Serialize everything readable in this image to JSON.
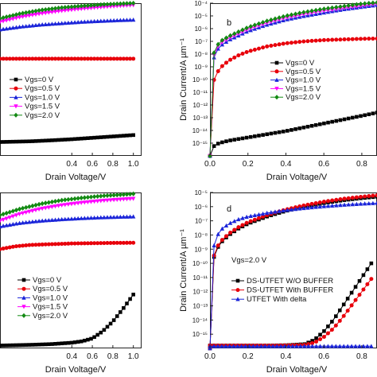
{
  "chart_data": [
    {
      "id": "a",
      "panel_label": "",
      "type": "line",
      "xlabel": "Drain Voltage/V",
      "ylabel": "",
      "xlim": [
        -0.3,
        1.08
      ],
      "ylim": [
        -1,
        10
      ],
      "x_ticks": [
        0.4,
        0.6,
        0.8,
        1.0
      ],
      "x_tick_labels": [
        "0.4",
        "0.6",
        "0.8",
        "1.0"
      ],
      "legend": {
        "position": "center-left"
      },
      "series": [
        {
          "name": "Vgs=0    V",
          "color": "#000000",
          "marker": "square",
          "x": [
            -0.3,
            0.0,
            0.2,
            0.4,
            0.6,
            0.8,
            1.0
          ],
          "y": [
            0.0,
            0.05,
            0.12,
            0.2,
            0.3,
            0.4,
            0.5
          ]
        },
        {
          "name": "Vgs=0.5 V",
          "color": "#e8000b",
          "marker": "circle",
          "x": [
            -0.3,
            0.0,
            0.2,
            0.4,
            0.6,
            0.8,
            1.0
          ],
          "y": [
            6.0,
            6.0,
            6.0,
            6.0,
            6.0,
            6.0,
            6.0
          ]
        },
        {
          "name": "Vgs=1.0 V",
          "color": "#1a24d9",
          "marker": "triangle",
          "x": [
            -0.3,
            -0.1,
            0.1,
            0.3,
            0.5,
            0.7,
            0.9,
            1.0
          ],
          "y": [
            8.1,
            8.3,
            8.45,
            8.55,
            8.65,
            8.72,
            8.78,
            8.8
          ]
        },
        {
          "name": "Vgs=1.5 V",
          "color": "#ff00ff",
          "marker": "triangle-down",
          "x": [
            -0.3,
            -0.1,
            0.1,
            0.3,
            0.5,
            0.7,
            0.9,
            1.0
          ],
          "y": [
            8.65,
            9.0,
            9.25,
            9.45,
            9.6,
            9.72,
            9.82,
            9.86
          ]
        },
        {
          "name": "Vgs=2.0 V",
          "color": "#138a13",
          "marker": "diamond",
          "x": [
            -0.3,
            -0.1,
            0.1,
            0.3,
            0.5,
            0.7,
            0.9,
            1.0
          ],
          "y": [
            8.9,
            9.25,
            9.5,
            9.68,
            9.8,
            9.9,
            9.97,
            10.0
          ]
        }
      ]
    },
    {
      "id": "b",
      "panel_label": "b",
      "type": "line",
      "xlabel": "Drain Voltage/V",
      "ylabel": "Drain Current/A µm⁻¹",
      "xlim": [
        0,
        0.88
      ],
      "ylim": [
        -16,
        -4
      ],
      "y_scale": "log",
      "x_ticks": [
        0.0,
        0.2,
        0.4,
        0.6,
        0.8
      ],
      "x_tick_labels": [
        "0.0",
        "0.2",
        "0.4",
        "0.6",
        "0.8"
      ],
      "y_ticks": [
        -15,
        -14,
        -13,
        -12,
        -11,
        -10,
        -9,
        -8,
        -7,
        -6,
        -5,
        -4
      ],
      "y_tick_labels": [
        "10⁻¹⁵",
        "10⁻¹⁴",
        "10⁻¹³",
        "10⁻¹²",
        "10⁻¹¹",
        "10⁻¹⁰",
        "10⁻⁹",
        "10⁻⁸",
        "10⁻⁷",
        "10⁻⁶",
        "10⁻⁵",
        "10⁻⁴"
      ],
      "legend": {
        "position": "center-right"
      },
      "series": [
        {
          "name": "Vgs=0   V",
          "color": "#000000",
          "marker": "square",
          "x": [
            0.0,
            0.01,
            0.03,
            0.06,
            0.1,
            0.2,
            0.3,
            0.4,
            0.5,
            0.6,
            0.7,
            0.8,
            0.88
          ],
          "y": [
            -16.0,
            -15.4,
            -15.1,
            -14.95,
            -14.8,
            -14.55,
            -14.3,
            -14.05,
            -13.75,
            -13.45,
            -13.15,
            -12.85,
            -12.6
          ]
        },
        {
          "name": "Vgs=0.5 V",
          "color": "#e8000b",
          "marker": "circle",
          "x": [
            0.0,
            0.005,
            0.01,
            0.03,
            0.06,
            0.1,
            0.15,
            0.2,
            0.3,
            0.4,
            0.5,
            0.6,
            0.7,
            0.8,
            0.88
          ],
          "y": [
            -16.0,
            -11.5,
            -10.6,
            -9.6,
            -9.0,
            -8.5,
            -8.1,
            -7.8,
            -7.4,
            -7.15,
            -7.0,
            -6.9,
            -6.85,
            -6.8,
            -6.78
          ]
        },
        {
          "name": "Vgs=1.0 V",
          "color": "#1a24d9",
          "marker": "triangle",
          "x": [
            0.0,
            0.005,
            0.01,
            0.03,
            0.06,
            0.1,
            0.2,
            0.3,
            0.4,
            0.5,
            0.6,
            0.7,
            0.8,
            0.88
          ],
          "y": [
            -16.0,
            -10.5,
            -8.9,
            -7.8,
            -7.3,
            -6.9,
            -6.2,
            -5.7,
            -5.3,
            -5.0,
            -4.75,
            -4.5,
            -4.3,
            -4.15
          ]
        },
        {
          "name": "Vgs=1.5 V",
          "color": "#ff00ff",
          "marker": "triangle-down",
          "x": [
            0.0,
            0.005,
            0.01,
            0.03,
            0.06,
            0.1,
            0.2,
            0.3,
            0.4,
            0.5,
            0.6,
            0.7,
            0.8,
            0.88
          ],
          "y": [
            -16.0,
            -10.3,
            -8.7,
            -7.6,
            -7.1,
            -6.75,
            -6.05,
            -5.55,
            -5.15,
            -4.85,
            -4.6,
            -4.4,
            -4.2,
            -4.05
          ]
        },
        {
          "name": "Vgs=2.0 V",
          "color": "#138a13",
          "marker": "diamond",
          "x": [
            0.0,
            0.005,
            0.01,
            0.03,
            0.06,
            0.1,
            0.2,
            0.3,
            0.4,
            0.5,
            0.6,
            0.7,
            0.8,
            0.88
          ],
          "y": [
            -16.0,
            -10.1,
            -8.5,
            -7.45,
            -6.95,
            -6.6,
            -5.9,
            -5.4,
            -5.0,
            -4.7,
            -4.45,
            -4.25,
            -4.05,
            -3.95
          ]
        }
      ]
    },
    {
      "id": "c",
      "panel_label": "",
      "type": "line",
      "xlabel": "Drain Voltage/V",
      "ylabel": "",
      "xlim": [
        -0.3,
        1.08
      ],
      "ylim": [
        -1,
        10
      ],
      "x_ticks": [
        0.4,
        0.6,
        0.8,
        1.0
      ],
      "x_tick_labels": [
        "0.4",
        "0.6",
        "0.8",
        "1.0"
      ],
      "legend": {
        "position": "lower-center"
      },
      "series": [
        {
          "name": "Vgs=0    V",
          "color": "#000000",
          "marker": "square",
          "x": [
            -0.3,
            0.0,
            0.2,
            0.4,
            0.5,
            0.6,
            0.7,
            0.8,
            0.9,
            1.0
          ],
          "y": [
            -0.8,
            -0.75,
            -0.7,
            -0.6,
            -0.5,
            -0.3,
            0.2,
            0.9,
            1.8,
            2.8
          ]
        },
        {
          "name": "Vgs=0.5 V",
          "color": "#e8000b",
          "marker": "circle",
          "x": [
            -0.3,
            -0.15,
            0.0,
            0.2,
            0.4,
            0.6,
            0.8,
            1.0
          ],
          "y": [
            6.0,
            6.2,
            6.3,
            6.35,
            6.4,
            6.42,
            6.44,
            6.45
          ]
        },
        {
          "name": "Vgs=1.0 V",
          "color": "#1a24d9",
          "marker": "triangle",
          "x": [
            -0.3,
            -0.1,
            0.1,
            0.3,
            0.5,
            0.7,
            0.9,
            1.0
          ],
          "y": [
            7.6,
            7.85,
            8.0,
            8.1,
            8.18,
            8.24,
            8.28,
            8.3
          ]
        },
        {
          "name": "Vgs=1.5 V",
          "color": "#ff00ff",
          "marker": "triangle-down",
          "x": [
            -0.3,
            -0.1,
            0.1,
            0.3,
            0.5,
            0.7,
            0.9,
            1.0
          ],
          "y": [
            8.0,
            8.5,
            8.85,
            9.1,
            9.28,
            9.42,
            9.52,
            9.56
          ]
        },
        {
          "name": "Vgs=2.0 V",
          "color": "#138a13",
          "marker": "diamond",
          "x": [
            -0.3,
            -0.1,
            0.1,
            0.3,
            0.5,
            0.7,
            0.9,
            1.0
          ],
          "y": [
            8.4,
            8.85,
            9.2,
            9.45,
            9.62,
            9.76,
            9.85,
            9.9
          ]
        }
      ]
    },
    {
      "id": "d",
      "panel_label": "d",
      "type": "line",
      "xlabel": "Drain Voltage/V",
      "ylabel": "Drain Current/A µm⁻¹",
      "xlim": [
        0,
        0.88
      ],
      "ylim": [
        -16,
        -5
      ],
      "y_scale": "log",
      "x_ticks": [
        0.0,
        0.2,
        0.4,
        0.6,
        0.8
      ],
      "x_tick_labels": [
        "0.0",
        "0.2",
        "0.4",
        "0.6",
        "0.8"
      ],
      "y_ticks": [
        -15,
        -14,
        -13,
        -12,
        -11,
        -10,
        -9,
        -8,
        -7,
        -6,
        -5
      ],
      "y_tick_labels": [
        "10⁻¹⁵",
        "10⁻¹⁴",
        "10⁻¹³",
        "10⁻¹²",
        "10⁻¹¹",
        "10⁻¹⁰",
        "10⁻⁹",
        "10⁻⁸",
        "10⁻⁷",
        "10⁻⁶",
        "10⁻⁵"
      ],
      "annotation": "Vgs=2.0 V",
      "legend": {
        "position": "center-left"
      },
      "series": [
        {
          "name": "DS-UTFET  W/O  BUFFER",
          "color": "#000000",
          "marker": "square",
          "x": [
            0.0,
            0.005,
            0.01,
            0.02,
            0.04,
            0.06,
            0.1,
            0.15,
            0.2,
            0.3,
            0.4,
            0.5,
            0.6,
            0.7,
            0.8,
            0.88
          ],
          "y": [
            -16.0,
            -13.0,
            -11.0,
            -9.6,
            -8.9,
            -8.5,
            -8.0,
            -7.55,
            -7.2,
            -6.7,
            -6.3,
            -6.0,
            -5.75,
            -5.55,
            -5.4,
            -5.3
          ]
        },
        {
          "name": "DS-UTFET  With  BUFFER",
          "color": "#e8000b",
          "marker": "circle",
          "x": [
            0.0,
            0.005,
            0.01,
            0.02,
            0.04,
            0.06,
            0.1,
            0.15,
            0.2,
            0.3,
            0.4,
            0.5,
            0.6,
            0.7,
            0.8,
            0.88
          ],
          "y": [
            -16.0,
            -12.8,
            -10.8,
            -9.5,
            -8.8,
            -8.4,
            -7.9,
            -7.45,
            -7.1,
            -6.6,
            -6.2,
            -5.9,
            -5.65,
            -5.45,
            -5.3,
            -5.2
          ]
        },
        {
          "name": "UTFET        With  delta",
          "color": "#1a24d9",
          "marker": "triangle",
          "x": [
            0.0,
            0.005,
            0.01,
            0.02,
            0.04,
            0.06,
            0.1,
            0.15,
            0.2,
            0.3,
            0.4,
            0.5,
            0.6,
            0.7,
            0.8,
            0.88
          ],
          "y": [
            -16.0,
            -12.2,
            -10.0,
            -8.8,
            -8.0,
            -7.6,
            -7.2,
            -6.9,
            -6.7,
            -6.45,
            -6.25,
            -6.1,
            -5.98,
            -5.88,
            -5.8,
            -5.75
          ]
        },
        {
          "name": "",
          "color": "#000000",
          "marker": "square",
          "x": [
            0.0,
            0.1,
            0.2,
            0.3,
            0.4,
            0.5,
            0.55,
            0.6,
            0.65,
            0.7,
            0.75,
            0.8,
            0.85
          ],
          "y": [
            -15.8,
            -15.8,
            -15.8,
            -15.8,
            -15.78,
            -15.7,
            -15.4,
            -14.8,
            -14.0,
            -13.0,
            -12.0,
            -11.0,
            -10.0
          ]
        },
        {
          "name": "",
          "color": "#e8000b",
          "marker": "circle",
          "x": [
            0.0,
            0.1,
            0.2,
            0.3,
            0.4,
            0.5,
            0.55,
            0.6,
            0.65,
            0.7,
            0.75,
            0.8,
            0.85
          ],
          "y": [
            -15.8,
            -15.8,
            -15.8,
            -15.8,
            -15.79,
            -15.75,
            -15.6,
            -15.2,
            -14.6,
            -13.8,
            -12.9,
            -12.0,
            -11.1
          ]
        },
        {
          "name": "",
          "color": "#1a24d9",
          "marker": "triangle",
          "x": [
            0.0,
            0.2,
            0.4,
            0.6,
            0.8,
            0.85
          ],
          "y": [
            -15.85,
            -15.85,
            -15.85,
            -15.85,
            -15.85,
            -15.85
          ]
        }
      ]
    }
  ]
}
